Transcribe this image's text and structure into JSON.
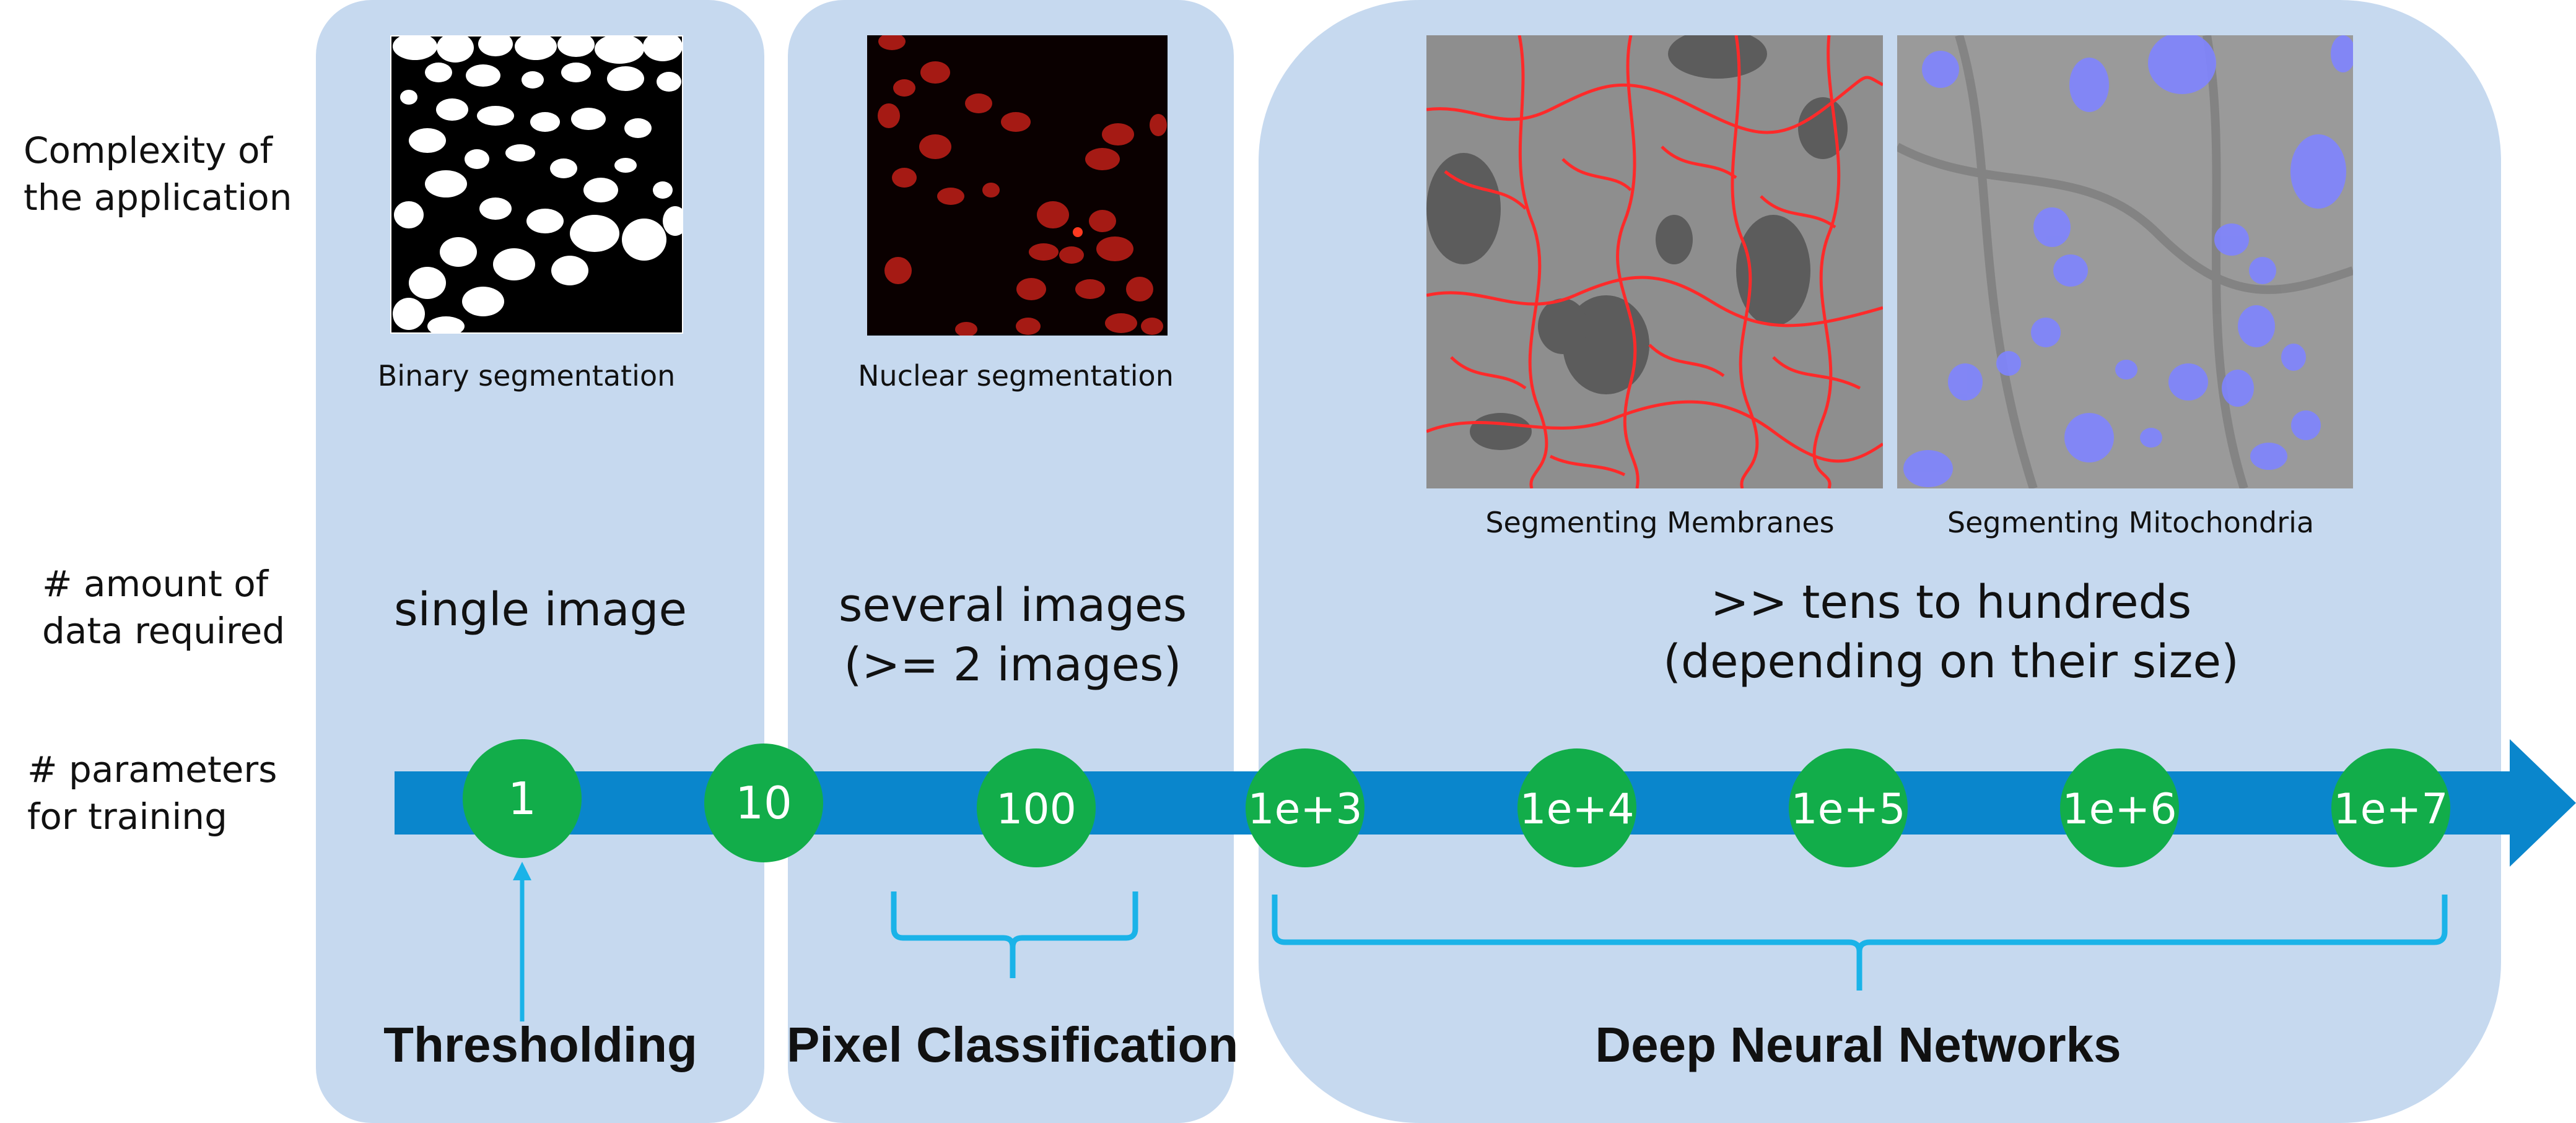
{
  "row_labels": {
    "complexity": [
      "Complexity of",
      "the application"
    ],
    "data": [
      "# amount of",
      "data required"
    ],
    "params": [
      "# parameters",
      "for training"
    ]
  },
  "examples": [
    {
      "caption": "Binary segmentation"
    },
    {
      "caption": "Nuclear segmentation"
    },
    {
      "caption": "Segmenting Membranes"
    },
    {
      "caption": "Segmenting Mitochondria"
    }
  ],
  "data_required": [
    [
      "single image"
    ],
    [
      "several images",
      "(>= 2 images)"
    ],
    [
      ">> tens to hundreds",
      "(depending on their size)"
    ]
  ],
  "axis_values": [
    "1",
    "10",
    "100",
    "1e+3",
    "1e+4",
    "1e+5",
    "1e+6",
    "1e+7"
  ],
  "methods": [
    "Thresholding",
    "Pixel Classification",
    "Deep Neural Networks"
  ],
  "colors": {
    "panel": "#c6d9ef",
    "axis": "#0a86cc",
    "circle": "#12ad4a",
    "bracket": "#1ab3e8",
    "overlay_membrane": "#ff2a2a",
    "overlay_mito": "#7f84ff"
  }
}
